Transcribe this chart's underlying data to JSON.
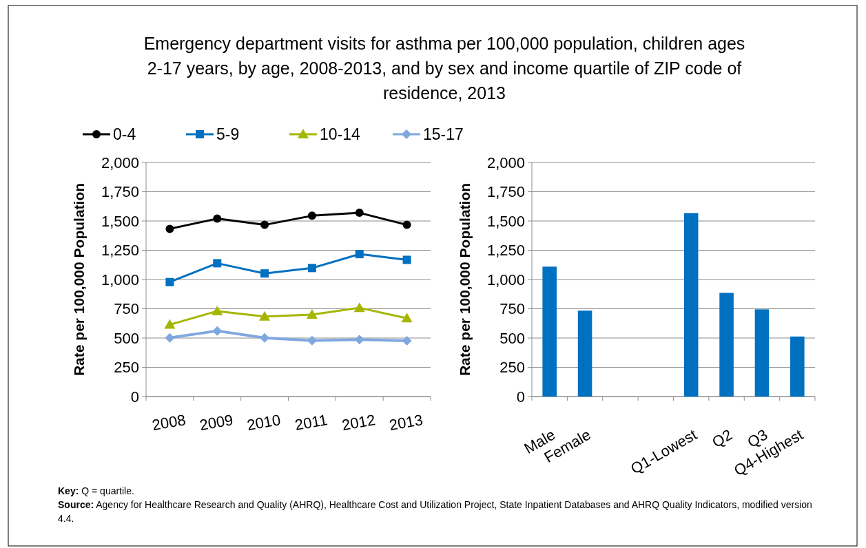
{
  "chart_data": [
    {
      "type": "line",
      "title": "Emergency department visits for asthma per 100,000 population, children ages 2-17 years, by age, 2008-2013, and by sex and income quartile of ZIP code of residence, 2013",
      "ylabel": "Rate per 100,000 Population",
      "categories": [
        "2008",
        "2009",
        "2010",
        "2011",
        "2012",
        "2013"
      ],
      "series": [
        {
          "name": "0-4",
          "color": "#000000",
          "marker": "circle",
          "values": [
            1433,
            1520,
            1467,
            1545,
            1570,
            1467
          ]
        },
        {
          "name": "5-9",
          "color": "#0070c0",
          "marker": "square",
          "values": [
            978,
            1139,
            1052,
            1098,
            1217,
            1168
          ]
        },
        {
          "name": "10-14",
          "color": "#a5b600",
          "marker": "triangle",
          "values": [
            614,
            730,
            684,
            700,
            758,
            669
          ]
        },
        {
          "name": "15-17",
          "color": "#7fa8e0",
          "marker": "diamond",
          "values": [
            502,
            561,
            502,
            478,
            487,
            476
          ]
        }
      ],
      "ylim": [
        0,
        2000
      ],
      "yticks": [
        {
          "value": 0,
          "label": "0"
        },
        {
          "value": 250,
          "label": "250"
        },
        {
          "value": 500,
          "label": "500"
        },
        {
          "value": 750,
          "label": "750"
        },
        {
          "value": 1000,
          "label": "1,000"
        },
        {
          "value": 1250,
          "label": "1,250"
        },
        {
          "value": 1500,
          "label": "1,500"
        },
        {
          "value": 1750,
          "label": "1,750"
        },
        {
          "value": 2000,
          "label": "2,000"
        }
      ],
      "grid": "y",
      "legend": "top",
      "line_style": "solid",
      "annotations": [
        "Key: Q = quartile.",
        "Source: Agency for Healthcare Research and Quality (AHRQ), Healthcare Cost and Utilization Project, State Inpatient Databases and AHRQ Quality Indicators, modified version 4.4."
      ]
    },
    {
      "type": "bar",
      "ylabel": "Rate per 100,000 Population",
      "categories": [
        "Male",
        "Female",
        null,
        null,
        "Q1-Lowest",
        "Q2",
        "Q3",
        "Q4-Highest"
      ],
      "values": [
        1110,
        734,
        null,
        null,
        1568,
        886,
        745,
        513
      ],
      "color": "#0070c0",
      "ylim": [
        0,
        2000
      ],
      "yticks": [
        {
          "value": 0,
          "label": "0"
        },
        {
          "value": 250,
          "label": "250"
        },
        {
          "value": 500,
          "label": "500"
        },
        {
          "value": 750,
          "label": "750"
        },
        {
          "value": 1000,
          "label": "1,000"
        },
        {
          "value": 1250,
          "label": "1,250"
        },
        {
          "value": 1500,
          "label": "1,500"
        },
        {
          "value": 1750,
          "label": "1,750"
        },
        {
          "value": 2000,
          "label": "2,000"
        }
      ],
      "grid": "y"
    }
  ]
}
